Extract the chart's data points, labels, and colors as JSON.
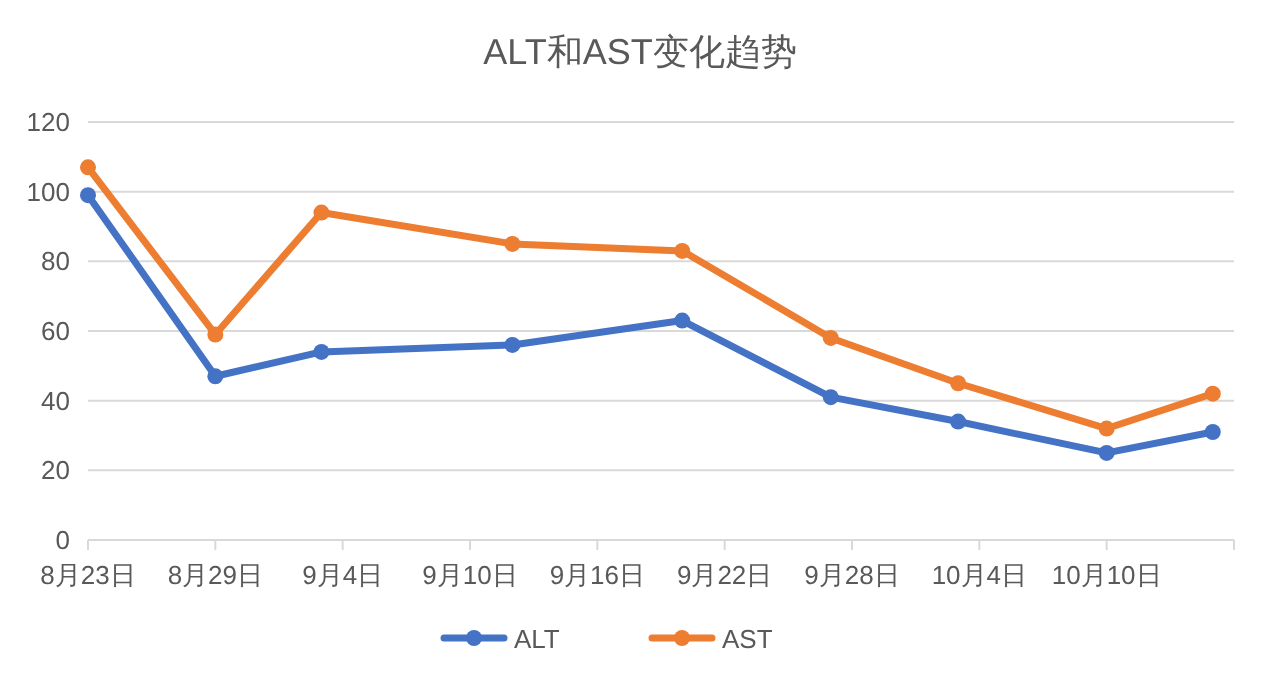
{
  "chart_data": {
    "type": "line",
    "title": "ALT和AST变化趋势",
    "x": [
      "--08-23",
      "--08-29",
      "--09-03",
      "--09-12",
      "--09-20",
      "--09-27",
      "--10-03",
      "--10-10",
      "--10-15"
    ],
    "series": [
      {
        "name": "ALT",
        "color": "#4472c4",
        "values": [
          99,
          47,
          54,
          56,
          63,
          41,
          34,
          25,
          31
        ]
      },
      {
        "name": "AST",
        "color": "#ed7d31",
        "values": [
          107,
          59,
          94,
          85,
          83,
          58,
          45,
          32,
          42
        ]
      }
    ],
    "xlim": [
      "--08-23",
      "--10-16"
    ],
    "xticks": [
      {
        "value": "--08-23",
        "label": "8月23日"
      },
      {
        "value": "--08-29",
        "label": "8月29日"
      },
      {
        "value": "--09-04",
        "label": "9月4日"
      },
      {
        "value": "--09-10",
        "label": "9月10日"
      },
      {
        "value": "--09-16",
        "label": "9月16日"
      },
      {
        "value": "--09-22",
        "label": "9月22日"
      },
      {
        "value": "--09-28",
        "label": "9月28日"
      },
      {
        "value": "--10-04",
        "label": "10月4日"
      },
      {
        "value": "--10-10",
        "label": "10月10日"
      },
      {
        "value": "--10-16",
        "label": null
      }
    ],
    "ylim": [
      0,
      120
    ],
    "yticks": [
      0,
      20,
      40,
      60,
      80,
      100,
      120
    ],
    "grid": "y",
    "legend": "bottom",
    "marker": "circle",
    "line_style": "solid"
  }
}
